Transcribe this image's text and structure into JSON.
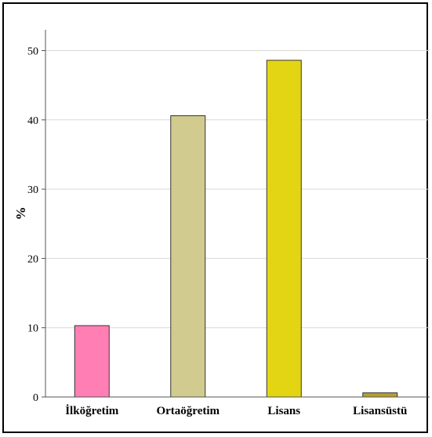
{
  "chart_data": {
    "type": "bar",
    "title": "",
    "xlabel": "",
    "ylabel": "%",
    "ylim": [
      0,
      53
    ],
    "yticks": [
      0,
      10,
      20,
      30,
      40,
      50
    ],
    "grid": true,
    "legend": "none",
    "categories": [
      "İlköğretim",
      "Ortaöğretim",
      "Lisans",
      "Lisansüstü"
    ],
    "values": [
      10.3,
      40.6,
      48.6,
      0.6
    ],
    "colors": [
      "#ff7fb4",
      "#d1cb8f",
      "#e4d514",
      "#b5a02e"
    ]
  }
}
